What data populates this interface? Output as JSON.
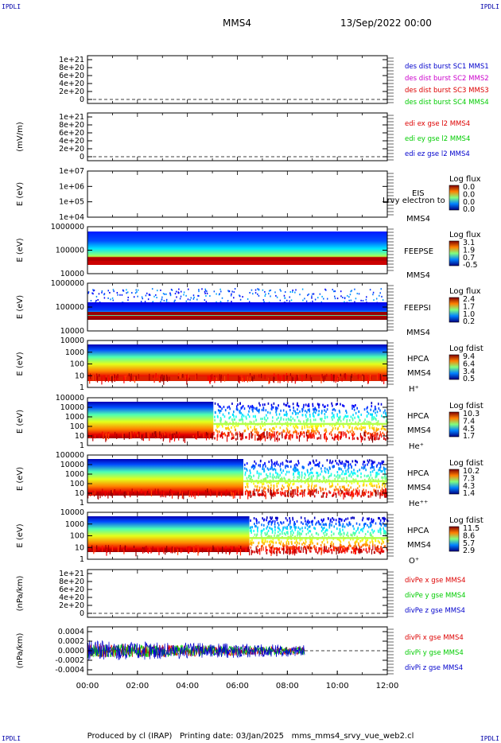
{
  "header": {
    "corner_label": "IPDLI",
    "spacecraft": "MMS4",
    "date": "13/Sep/2022 00:00"
  },
  "footer": {
    "produced_by": "Produced by cl (IRAP)",
    "printing_date": "Printing date: 03/Jan/2025",
    "script": "mms_mms4_srvy_vue_web2.cl"
  },
  "colors": {
    "red": "#dd0000",
    "green": "#00cc00",
    "blue": "#0000cc",
    "magenta": "#cc00cc",
    "dark_red": "#aa0000",
    "dashes": "#000000"
  },
  "chart_data": {
    "type": "line",
    "time_axis": {
      "ticks": [
        "00:00",
        "02:00",
        "04:00",
        "06:00",
        "08:00",
        "10:00",
        "12:00"
      ],
      "range_hours": [
        0,
        12
      ]
    },
    "panels": [
      {
        "id": "des-dist",
        "kind": "empty",
        "ylabel": "",
        "yticks": [
          "1e+21",
          "8e+20",
          "6e+20",
          "4e+20",
          "2e+20",
          "0"
        ],
        "legend": [
          {
            "text": "des dist burst SC1 MMS1",
            "color": "#0000cc"
          },
          {
            "text": "des dist burst SC2 MMS2",
            "color": "#cc00cc"
          },
          {
            "text": "des dist burst SC3 MMS3",
            "color": "#dd0000"
          },
          {
            "text": "des dist burst SC4 MMS4",
            "color": "#00cc00"
          }
        ]
      },
      {
        "id": "edi",
        "kind": "empty",
        "ylabel": "(mV/m)",
        "yticks": [
          "1e+21",
          "8e+20",
          "6e+20",
          "4e+20",
          "2e+20",
          "0"
        ],
        "legend": [
          {
            "text": "edi ex gse l2 MMS4",
            "color": "#dd0000"
          },
          {
            "text": "edi ey gse l2 MMS4",
            "color": "#00cc00"
          },
          {
            "text": "edi ez gse l2 MMS4",
            "color": "#0000cc"
          }
        ]
      },
      {
        "id": "eis",
        "kind": "spectrogram-empty",
        "ylabel": "E (eV)",
        "yticks": [
          "1e+07",
          "1e+06",
          "1e+05",
          "1e+04"
        ],
        "species": [
          "EIS"
        ],
        "overlay_text": "Lrvy electron to",
        "station": "MMS4",
        "colorbar": {
          "title": "Log flux",
          "ticks": [
            "0.0",
            "0.0",
            "0.0",
            "0.0"
          ]
        }
      },
      {
        "id": "feepse",
        "kind": "spectrogram",
        "ylabel": "E (eV)",
        "yticks": [
          "1000000",
          "100000",
          "10000"
        ],
        "species": [
          "FEEPSE"
        ],
        "station": "MMS4",
        "colorbar": {
          "title": "Log flux",
          "ticks": [
            "3.1",
            "1.9",
            "0.7",
            "-0.5"
          ]
        }
      },
      {
        "id": "feepsi",
        "kind": "spectrogram",
        "ylabel": "E (eV)",
        "yticks": [
          "1000000",
          "100000",
          "10000"
        ],
        "species": [
          "FEEPSI"
        ],
        "station": "MMS4",
        "colorbar": {
          "title": "Log flux",
          "ticks": [
            "2.4",
            "1.7",
            "1.0",
            "0.2"
          ]
        }
      },
      {
        "id": "hpca-h",
        "kind": "spectrogram",
        "ylabel": "E (eV)",
        "yticks": [
          "10000",
          "1000",
          "100",
          "10",
          "1"
        ],
        "species": [
          "HPCA",
          "MMS4",
          "H⁺"
        ],
        "colorbar": {
          "title": "Log fdist",
          "ticks": [
            "9.4",
            "6.4",
            "3.4",
            "0.5"
          ]
        }
      },
      {
        "id": "hpca-he",
        "kind": "spectrogram",
        "ylabel": "E (eV)",
        "yticks": [
          "100000",
          "10000",
          "1000",
          "100",
          "10",
          "1"
        ],
        "species": [
          "HPCA",
          "MMS4",
          "He⁺"
        ],
        "colorbar": {
          "title": "Log fdist",
          "ticks": [
            "10.3",
            "7.4",
            "4.5",
            "1.7"
          ]
        }
      },
      {
        "id": "hpca-hepp",
        "kind": "spectrogram",
        "ylabel": "E (eV)",
        "yticks": [
          "100000",
          "10000",
          "1000",
          "100",
          "10",
          "1"
        ],
        "species": [
          "HPCA",
          "MMS4",
          "He⁺⁺"
        ],
        "colorbar": {
          "title": "Log fdist",
          "ticks": [
            "10.2",
            "7.3",
            "4.3",
            "1.4"
          ]
        }
      },
      {
        "id": "hpca-o",
        "kind": "spectrogram",
        "ylabel": "E (eV)",
        "yticks": [
          "10000",
          "1000",
          "100",
          "10",
          "1"
        ],
        "species": [
          "HPCA",
          "MMS4",
          "O⁺"
        ],
        "colorbar": {
          "title": "Log fdist",
          "ticks": [
            "11.5",
            "8.6",
            "5.7",
            "2.9"
          ]
        }
      },
      {
        "id": "divpe",
        "kind": "empty",
        "ylabel": "(nPa/km)",
        "yticks": [
          "1e+21",
          "8e+20",
          "6e+20",
          "4e+20",
          "2e+20",
          "0"
        ],
        "legend": [
          {
            "text": "divPe x gse MMS4",
            "color": "#dd0000"
          },
          {
            "text": "divPe y gse MMS4",
            "color": "#00cc00"
          },
          {
            "text": "divPe z gse MMS4",
            "color": "#0000cc"
          }
        ]
      },
      {
        "id": "divpi",
        "kind": "timeseries",
        "ylabel": "(nPa/km)",
        "yticks": [
          "0.0004",
          "0.0002",
          "0.0000",
          "-0.0002",
          "-0.0004"
        ],
        "ylim": [
          -0.0005,
          0.0005
        ],
        "data_extent_hours": [
          0,
          8.7
        ],
        "amplitude_approx": 0.0002,
        "legend": [
          {
            "text": "divPi x gse MMS4",
            "color": "#dd0000"
          },
          {
            "text": "divPi y gse MMS4",
            "color": "#00cc00"
          },
          {
            "text": "divPi z gse MMS4",
            "color": "#0000cc"
          }
        ]
      }
    ]
  }
}
